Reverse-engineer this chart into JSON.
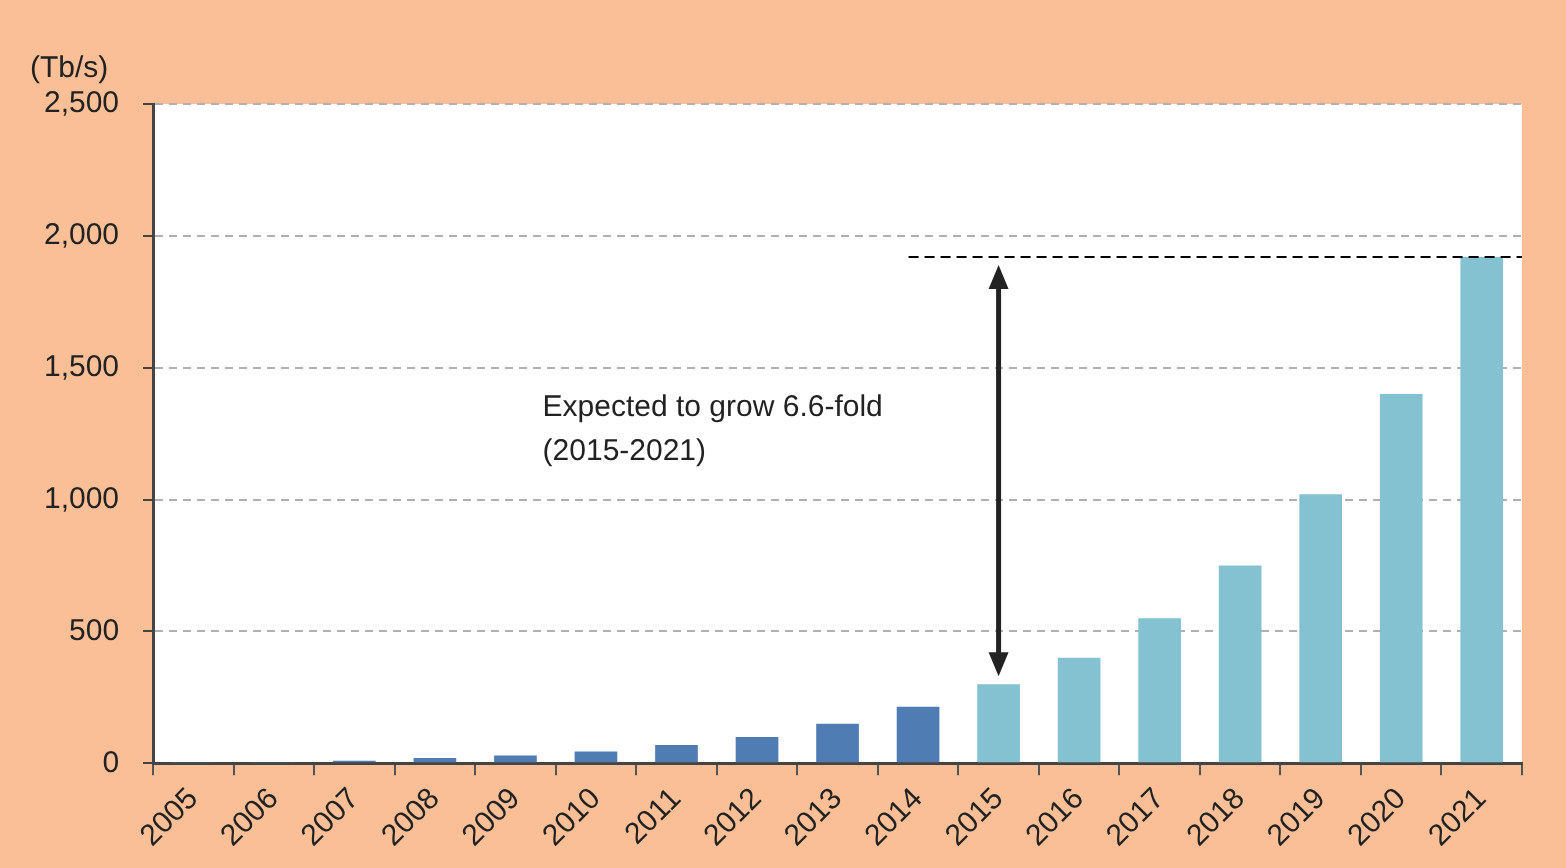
{
  "chart_data": {
    "type": "bar",
    "ylabel": "(Tb/s)",
    "categories": [
      "2005",
      "2006",
      "2007",
      "2008",
      "2009",
      "2010",
      "2011",
      "2012",
      "2013",
      "2014",
      "2015",
      "2016",
      "2017",
      "2018",
      "2019",
      "2020",
      "2021"
    ],
    "values": [
      3,
      3,
      10,
      20,
      30,
      45,
      70,
      100,
      150,
      215,
      300,
      400,
      550,
      750,
      1020,
      1400,
      1920
    ],
    "colors": [
      "#4f7db3",
      "#4f7db3",
      "#4f7db3",
      "#4f7db3",
      "#4f7db3",
      "#4f7db3",
      "#4f7db3",
      "#4f7db3",
      "#4f7db3",
      "#4f7db3",
      "#84c1d1",
      "#84c1d1",
      "#84c1d1",
      "#84c1d1",
      "#84c1d1",
      "#84c1d1",
      "#84c1d1"
    ],
    "ylim": [
      0,
      2500
    ],
    "yticks": [
      0,
      {
        "value": 500,
        "label": "500"
      },
      {
        "value": 1000,
        "label": "1,000"
      },
      {
        "value": 1500,
        "label": "1,500"
      },
      {
        "value": 2000,
        "label": "2,000"
      },
      {
        "value": 2500,
        "label": "2,500"
      }
    ],
    "grid": "y",
    "legend": false,
    "ref_lines": [
      {
        "axis": "y",
        "value": 1920,
        "color": "#000000",
        "line_style": "dashed"
      }
    ],
    "annotations": [
      "Expected to grow 6.6-fold\n(2015-2021)"
    ]
  }
}
